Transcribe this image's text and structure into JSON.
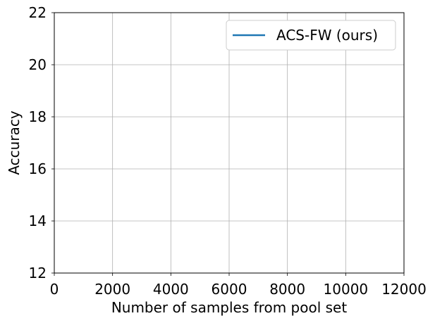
{
  "chart_data": {
    "type": "line",
    "title": "",
    "xlabel": "Number of samples from pool set",
    "ylabel": "Accuracy",
    "xlim": [
      0,
      12000
    ],
    "ylim": [
      12,
      22
    ],
    "xticks": [
      0,
      2000,
      4000,
      6000,
      8000,
      10000,
      12000
    ],
    "yticks": [
      12,
      14,
      16,
      18,
      20,
      22
    ],
    "grid": true,
    "legend_position": "top-right",
    "series": [
      {
        "name": "ACS-FW (ours)",
        "color": "#1f77b4",
        "x": [],
        "y": []
      }
    ]
  }
}
